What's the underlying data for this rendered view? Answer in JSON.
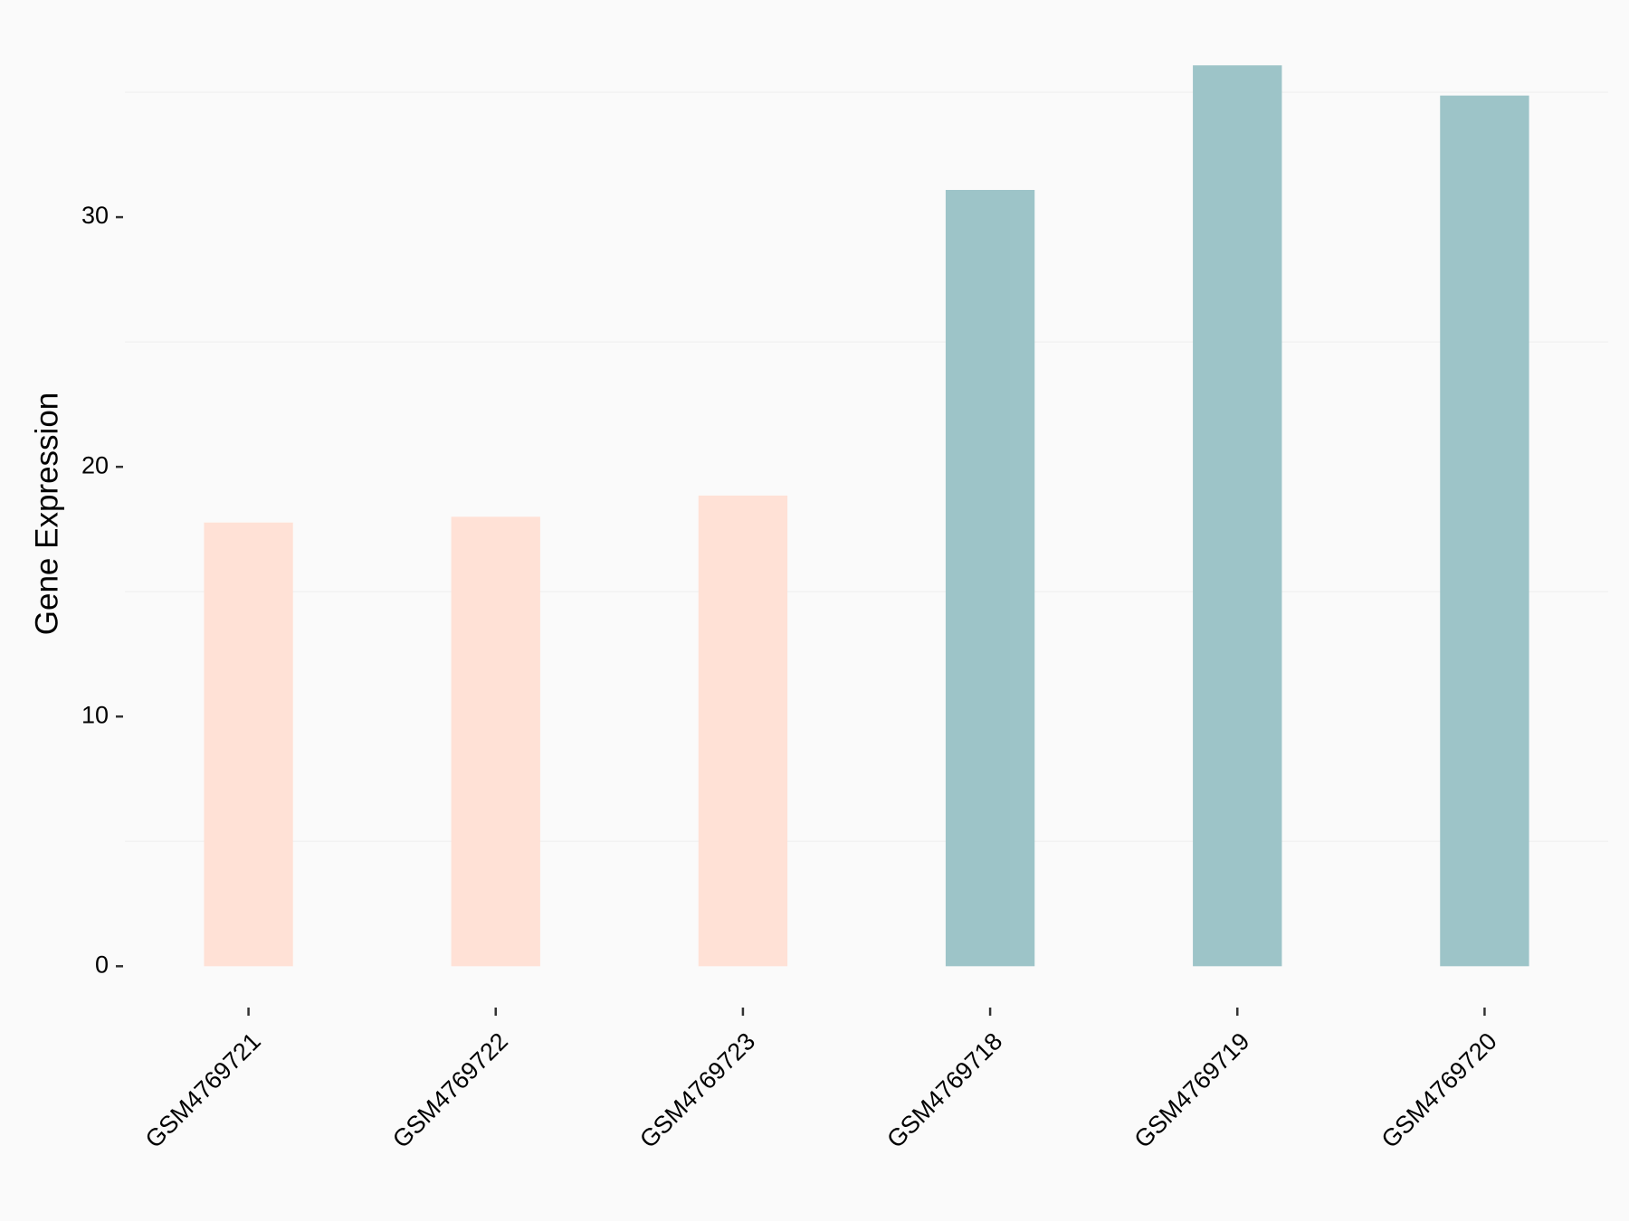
{
  "chart_data": {
    "type": "bar",
    "y_label": "Gene Expression",
    "categories": [
      "GSM4769721",
      "GSM4769722",
      "GSM4769723",
      "GSM4769718",
      "GSM4769719",
      "GSM4769720"
    ],
    "values": [
      17.77,
      18.0,
      18.85,
      31.09,
      36.08,
      34.87
    ],
    "colors": [
      "#FFE1D6",
      "#FFE1D6",
      "#FFE1D6",
      "#9DC4C8",
      "#9DC4C8",
      "#9DC4C8"
    ],
    "ylim": [
      -1.8,
      37.9
    ],
    "yticks": [
      0,
      10,
      20,
      30
    ],
    "minor_yticks": [
      5,
      15,
      25,
      35
    ],
    "grid": true
  }
}
